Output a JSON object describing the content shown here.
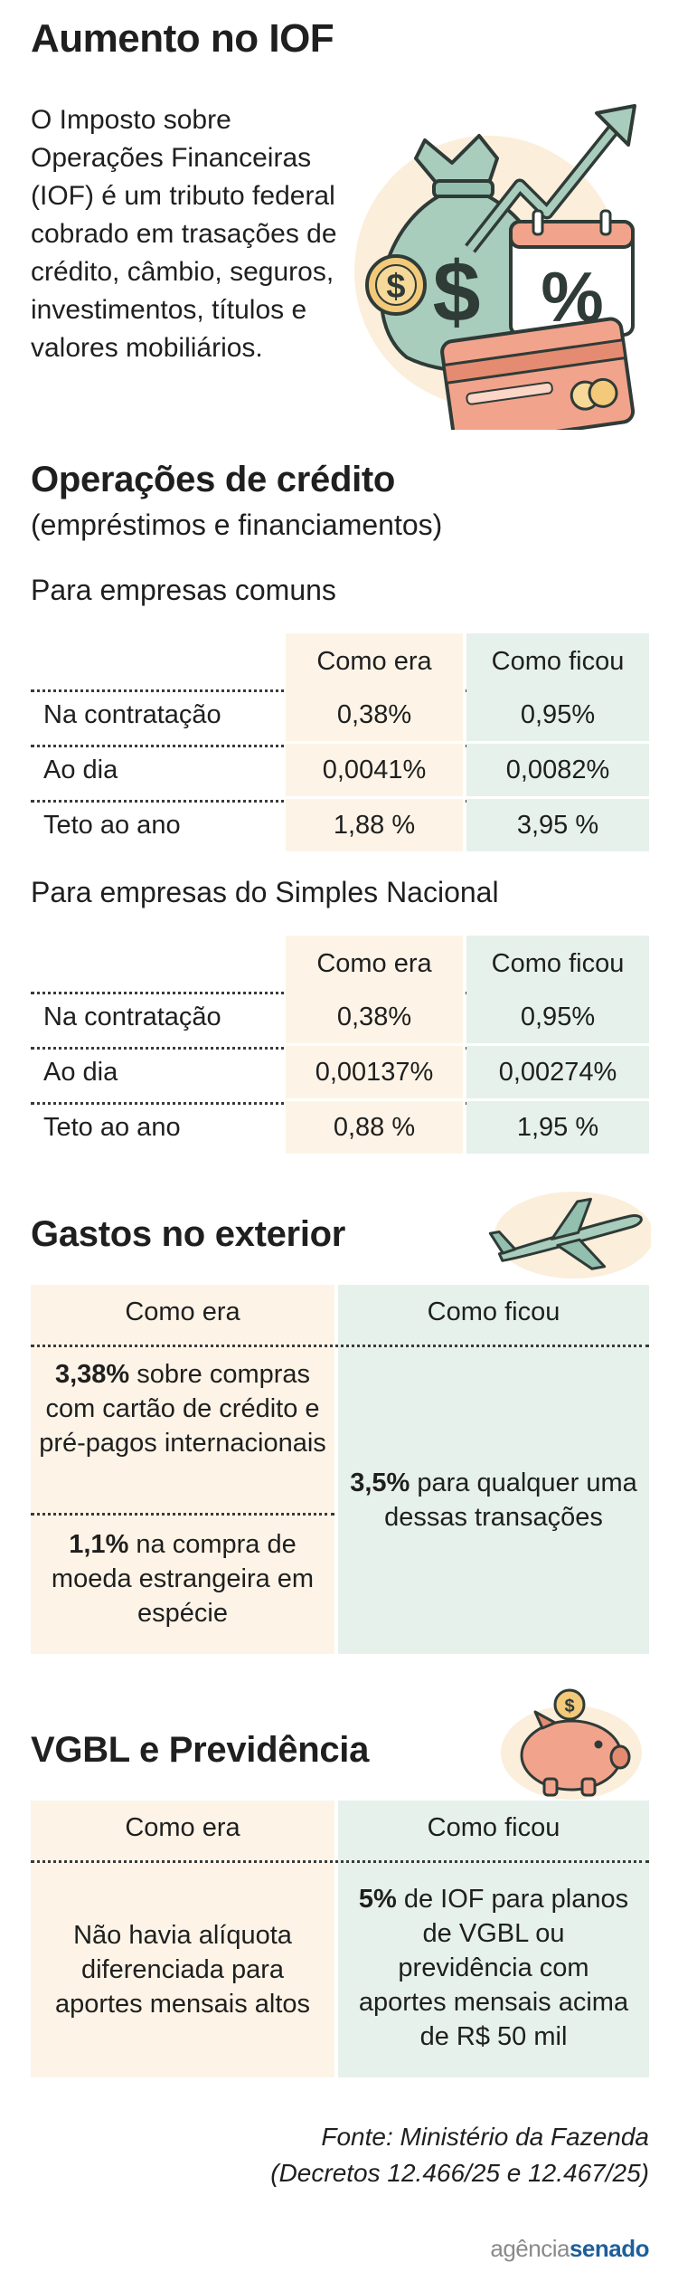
{
  "title": "Aumento no IOF",
  "intro": "O Imposto sobre Operações Financeiras (IOF) é um tributo federal cobrado em trasações de crédito, câmbio, seguros, investimentos, títulos e valores mobiliários.",
  "credito": {
    "heading": "Operações de crédito",
    "subheading": "(empréstimos e financiamentos)",
    "col_before": "Como era",
    "col_after": "Como ficou",
    "comuns": {
      "label": "Para empresas comuns",
      "rows": [
        {
          "label": "Na contratação",
          "before": "0,38%",
          "after": "0,95%"
        },
        {
          "label": "Ao dia",
          "before": "0,0041%",
          "after": "0,0082%"
        },
        {
          "label": "Teto ao ano",
          "before": "1,88 %",
          "after": "3,95 %"
        }
      ]
    },
    "simples": {
      "label": "Para empresas do Simples Nacional",
      "rows": [
        {
          "label": "Na contratação",
          "before": "0,38%",
          "after": "0,95%"
        },
        {
          "label": "Ao dia",
          "before": "0,00137%",
          "after": "0,00274%"
        },
        {
          "label": "Teto ao ano",
          "before": "0,88 %",
          "after": "1,95 %"
        }
      ]
    }
  },
  "exterior": {
    "heading": "Gastos no exterior",
    "col_before": "Como era",
    "col_after": "Como ficou",
    "before_1_bold": "3,38%",
    "before_1_rest": " sobre compras com cartão de crédito e pré-pagos internacionais",
    "before_2_bold": "1,1%",
    "before_2_rest": " na compra de moeda estrangeira em espécie",
    "after_bold": "3,5%",
    "after_rest": " para qualquer uma dessas transações"
  },
  "vgbl": {
    "heading": "VGBL e Previdência",
    "col_before": "Como era",
    "col_after": "Como ficou",
    "before": "Não havia alíquota diferenciada para aportes mensais altos",
    "after_bold": "5%",
    "after_rest": " de IOF para planos de VGBL ou previdência com aportes mensais acima de R$ 50 mil"
  },
  "source_line1": "Fonte: Ministério da Fazenda",
  "source_line2": "(Decretos 12.466/25 e 12.467/25)",
  "logo_part1": "agência",
  "logo_part2": "senado",
  "icons": [
    "money-bag-icon",
    "growth-arrow-icon",
    "percent-calendar-icon",
    "coin-icon",
    "credit-card-icon",
    "airplane-icon",
    "piggy-bank-icon"
  ],
  "colors": {
    "before_fill": "#fdf4e7",
    "after_fill": "#e6f1ec",
    "logo_blue": "#1d5f9a"
  }
}
